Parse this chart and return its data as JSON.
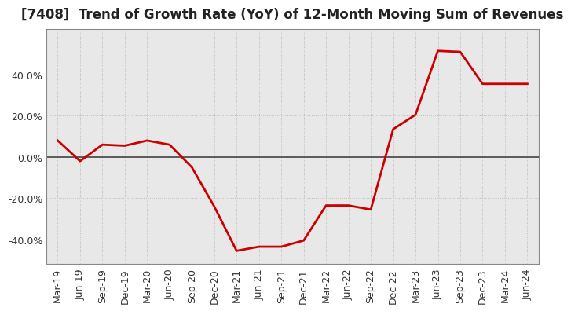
{
  "title": "[7408]  Trend of Growth Rate (YoY) of 12-Month Moving Sum of Revenues",
  "x_labels": [
    "Mar-19",
    "Jun-19",
    "Sep-19",
    "Dec-19",
    "Mar-20",
    "Jun-20",
    "Sep-20",
    "Dec-20",
    "Mar-21",
    "Jun-21",
    "Sep-21",
    "Dec-21",
    "Mar-22",
    "Jun-22",
    "Sep-22",
    "Dec-22",
    "Mar-23",
    "Jun-23",
    "Sep-23",
    "Dec-23",
    "Mar-24",
    "Jun-24"
  ],
  "y_values": [
    0.08,
    -0.02,
    0.06,
    0.055,
    0.08,
    0.06,
    -0.05,
    -0.24,
    -0.455,
    -0.435,
    -0.435,
    -0.405,
    -0.235,
    -0.235,
    -0.255,
    0.135,
    0.205,
    0.515,
    0.51,
    0.355,
    0.355,
    0.355
  ],
  "line_color": "#cc0000",
  "line_width": 2.0,
  "ylim": [
    -0.52,
    0.62
  ],
  "yticks": [
    -0.4,
    -0.2,
    0.0,
    0.2,
    0.4
  ],
  "ytick_labels": [
    "-40.0%",
    "-20.0%",
    "0.0%",
    "20.0%",
    "40.0%"
  ],
  "background_color": "#ffffff",
  "plot_bg_color": "#e8e8e8",
  "grid_color": "#bbbbbb",
  "zero_line_color": "#444444",
  "title_fontsize": 12,
  "tick_fontsize": 9,
  "title_color": "#222222"
}
